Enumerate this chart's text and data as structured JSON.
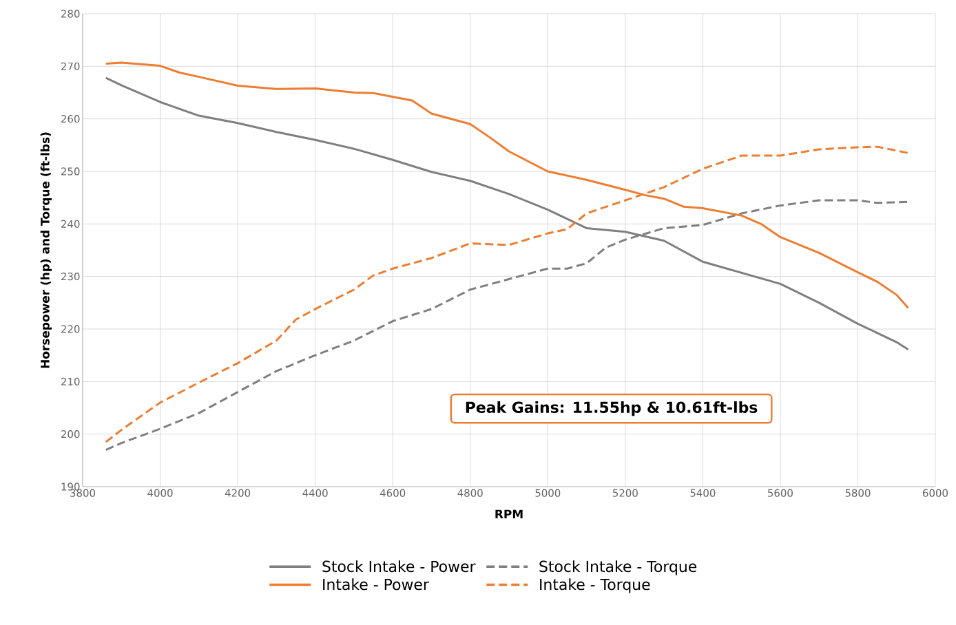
{
  "chart_data": {
    "type": "line",
    "xlabel": "RPM",
    "ylabel": "Horsepower (hp) and Torque (ft-lbs)",
    "xlim": [
      3800,
      6000
    ],
    "xticks": [
      3800,
      4000,
      4200,
      4400,
      4600,
      4800,
      5000,
      5200,
      5400,
      5600,
      5800,
      6000
    ],
    "ylim": [
      190,
      280
    ],
    "yticks": [
      190,
      200,
      210,
      220,
      230,
      240,
      250,
      260,
      270,
      280
    ],
    "grid": true,
    "legend": "bottom",
    "marker": "none",
    "annotations": [
      "Peak Gains: 11.55hp & 10.61ft-lbs"
    ],
    "series": [
      {
        "name": "Stock Intake  - Power",
        "color": "#7f7f7f",
        "line_style": "solid",
        "x": [
          3860,
          3900,
          4000,
          4100,
          4200,
          4300,
          4400,
          4500,
          4600,
          4700,
          4800,
          4900,
          5000,
          5100,
          5200,
          5300,
          5400,
          5500,
          5600,
          5700,
          5800,
          5900,
          5930
        ],
        "values": [
          267.8,
          266.4,
          263.2,
          260.6,
          259.2,
          257.5,
          256.0,
          254.3,
          252.2,
          249.9,
          248.2,
          245.7,
          242.7,
          239.2,
          238.5,
          236.8,
          232.8,
          230.7,
          228.6,
          225.0,
          221.0,
          217.5,
          216.1
        ]
      },
      {
        "name": "Intake - Power",
        "color": "#ed7d31",
        "line_style": "solid",
        "x": [
          3860,
          3900,
          4000,
          4050,
          4100,
          4200,
          4300,
          4400,
          4500,
          4550,
          4600,
          4650,
          4700,
          4800,
          4850,
          4900,
          5000,
          5100,
          5200,
          5250,
          5300,
          5350,
          5400,
          5500,
          5550,
          5600,
          5700,
          5800,
          5850,
          5900,
          5930
        ],
        "values": [
          270.5,
          270.7,
          270.1,
          268.8,
          268.0,
          266.3,
          265.7,
          265.8,
          265.0,
          264.9,
          264.2,
          263.5,
          261.0,
          259.0,
          256.5,
          253.8,
          250.0,
          248.4,
          246.5,
          245.5,
          244.8,
          243.3,
          243.0,
          241.6,
          240.0,
          237.5,
          234.5,
          230.8,
          229.0,
          226.5,
          224.0
        ]
      },
      {
        "name": "Stock Intake  - Torque",
        "color": "#7f7f7f",
        "line_style": "dashed",
        "x": [
          3860,
          3900,
          4000,
          4100,
          4200,
          4300,
          4400,
          4500,
          4600,
          4700,
          4800,
          4900,
          5000,
          5050,
          5100,
          5150,
          5200,
          5300,
          5400,
          5500,
          5600,
          5700,
          5800,
          5850,
          5930
        ],
        "values": [
          197.0,
          198.3,
          201.0,
          204.0,
          208.0,
          212.0,
          215.0,
          217.8,
          221.5,
          223.8,
          227.5,
          229.5,
          231.5,
          231.5,
          232.5,
          235.5,
          237.0,
          239.2,
          239.8,
          242.0,
          243.5,
          244.5,
          244.5,
          244.0,
          244.2
        ]
      },
      {
        "name": "Intake  - Torque",
        "color": "#ed7d31",
        "line_style": "dashed",
        "x": [
          3860,
          3900,
          4000,
          4100,
          4200,
          4300,
          4350,
          4400,
          4500,
          4550,
          4600,
          4700,
          4800,
          4900,
          5000,
          5050,
          5100,
          5200,
          5300,
          5400,
          5500,
          5600,
          5700,
          5800,
          5850,
          5930
        ],
        "values": [
          198.5,
          200.8,
          206.0,
          209.8,
          213.5,
          217.8,
          221.8,
          223.8,
          227.5,
          230.2,
          231.5,
          233.5,
          236.3,
          236.0,
          238.2,
          239.0,
          242.0,
          244.5,
          247.0,
          250.5,
          253.0,
          253.0,
          254.2,
          254.6,
          254.7,
          253.5
        ]
      }
    ]
  }
}
